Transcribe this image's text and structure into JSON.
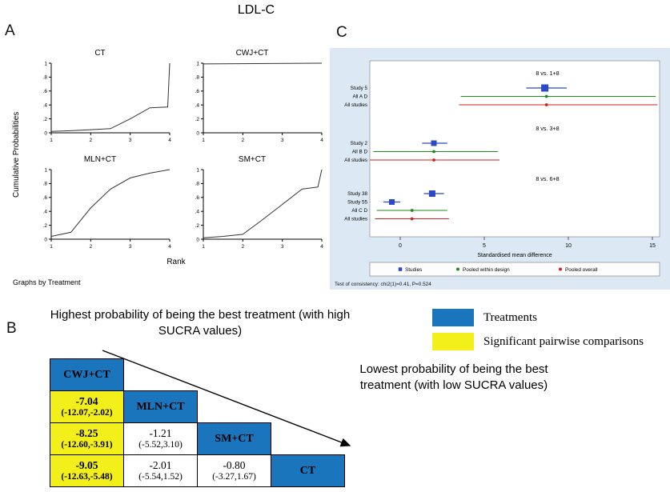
{
  "figure": {
    "title": "LDL-C",
    "panels": {
      "a": "A",
      "b": "B",
      "c": "C"
    }
  },
  "annotations": {
    "highest": "Highest probability of being the best treatment (with high SUCRA values)",
    "lowest": "Lowest probability of being the best treatment (with low SUCRA values)"
  },
  "legend": {
    "treatments_label": "Treatments",
    "significant_label": "Significant pairwise comparisons",
    "treatment_color": "#1b75bc",
    "significant_color": "#f3ef1b"
  },
  "chart_data": [
    {
      "id": "cumulative-rank-probabilities",
      "type": "line",
      "xlabel": "Rank",
      "ylabel": "Cumulative Probabilities",
      "caption": "Graphs by Treatment",
      "xlim": [
        1,
        4
      ],
      "ylim": [
        0,
        1
      ],
      "x_ticks": [
        1,
        2,
        3,
        4
      ],
      "y_ticks": [
        0,
        0.2,
        0.4,
        0.6,
        0.8,
        1
      ],
      "y_tick_labels": [
        "0",
        ".2",
        ".4",
        ".6",
        ".8",
        "1"
      ],
      "grid": false,
      "series": [
        {
          "name": "CT",
          "points": [
            [
              1,
              0.02
            ],
            [
              1.5,
              0.03
            ],
            [
              2.5,
              0.06
            ],
            [
              3,
              0.2
            ],
            [
              3.5,
              0.36
            ],
            [
              3.95,
              0.37
            ],
            [
              4,
              1
            ]
          ]
        },
        {
          "name": "CWJ+CT",
          "points": [
            [
              1,
              0.99
            ],
            [
              4,
              1
            ]
          ]
        },
        {
          "name": "MLN+CT",
          "points": [
            [
              1,
              0.04
            ],
            [
              1.5,
              0.1
            ],
            [
              2,
              0.45
            ],
            [
              2.5,
              0.72
            ],
            [
              3,
              0.88
            ],
            [
              3.5,
              0.95
            ],
            [
              4,
              1
            ]
          ]
        },
        {
          "name": "SM+CT",
          "points": [
            [
              1,
              0.02
            ],
            [
              1.5,
              0.04
            ],
            [
              2,
              0.07
            ],
            [
              2.5,
              0.28
            ],
            [
              3,
              0.5
            ],
            [
              3.5,
              0.72
            ],
            [
              3.9,
              0.75
            ],
            [
              4,
              1
            ]
          ]
        }
      ]
    },
    {
      "id": "consistency-forest-plot",
      "type": "scatter",
      "xlabel": "Standardised mean difference",
      "xlim": [
        -2.5,
        15.5
      ],
      "x_ticks": [
        0,
        5,
        10,
        15
      ],
      "note": "Test of consistency: chi2(1)=0.41, P=0.524",
      "legend": [
        {
          "label": "Studies",
          "kind": "study",
          "color": "#2b48c9"
        },
        {
          "label": "Pooled within design",
          "kind": "design",
          "color": "#1d8a1d"
        },
        {
          "label": "Pooled overall",
          "kind": "overall",
          "color": "#cc2222"
        }
      ],
      "groups": [
        {
          "label": "8 vs. 1+8",
          "rows": [
            {
              "name": "Study 5",
              "kind": "study",
              "est": 8.6,
              "lo": 7.5,
              "hi": 9.9,
              "size": 9
            },
            {
              "name": "All A D",
              "kind": "design",
              "est": 8.7,
              "lo": 3.6,
              "hi": 15.2
            },
            {
              "name": "All studies",
              "kind": "overall",
              "est": 8.7,
              "lo": 3.5,
              "hi": 15.3
            }
          ]
        },
        {
          "label": "8 vs. 3+8",
          "rows": [
            {
              "name": "Study 2",
              "kind": "study",
              "est": 2.0,
              "lo": 1.3,
              "hi": 2.8,
              "size": 7
            },
            {
              "name": "All B D",
              "kind": "design",
              "est": 2.0,
              "lo": -1.6,
              "hi": 5.8
            },
            {
              "name": "All studies",
              "kind": "overall",
              "est": 2.0,
              "lo": -1.8,
              "hi": 5.9
            }
          ]
        },
        {
          "label": "8 vs. 6+8",
          "rows": [
            {
              "name": "Study 38",
              "kind": "study",
              "est": 1.9,
              "lo": 1.4,
              "hi": 2.6,
              "size": 8
            },
            {
              "name": "Study 55",
              "kind": "study",
              "est": -0.5,
              "lo": -1.0,
              "hi": 0.0,
              "size": 7
            },
            {
              "name": "All C D",
              "kind": "design",
              "est": 0.7,
              "lo": -1.4,
              "hi": 2.8
            },
            {
              "name": "All studies",
              "kind": "overall",
              "est": 0.7,
              "lo": -1.5,
              "hi": 2.9
            }
          ]
        }
      ]
    },
    {
      "id": "league-table",
      "type": "table",
      "rows": [
        [
          {
            "kind": "treatment",
            "label": "CWJ+CT"
          }
        ],
        [
          {
            "kind": "significant",
            "est": "-7.04",
            "ci": "(-12.07,-2.02)"
          },
          {
            "kind": "treatment",
            "label": "MLN+CT"
          }
        ],
        [
          {
            "kind": "significant",
            "est": "-8.25",
            "ci": "(-12.60,-3.91)"
          },
          {
            "kind": "plain",
            "est": "-1.21",
            "ci": "(-5.52,3.10)"
          },
          {
            "kind": "treatment",
            "label": "SM+CT"
          }
        ],
        [
          {
            "kind": "significant",
            "est": "-9.05",
            "ci": "(-12.63,-5.48)"
          },
          {
            "kind": "plain",
            "est": "-2.01",
            "ci": "(-5.54,1.52)"
          },
          {
            "kind": "plain",
            "est": "-0.80",
            "ci": "(-3.27,1.67)"
          },
          {
            "kind": "treatment",
            "label": "CT"
          }
        ]
      ]
    }
  ]
}
